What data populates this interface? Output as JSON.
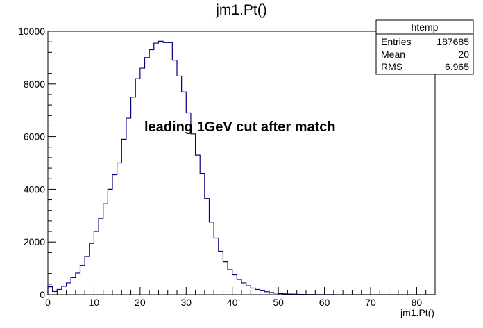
{
  "chart_data": {
    "type": "bar",
    "title": "jm1.Pt()",
    "xlabel": "jm1.Pt()",
    "ylabel": "",
    "annotation": "leading 1GeV cut after match",
    "xlim": [
      0,
      84
    ],
    "ylim": [
      0,
      10000
    ],
    "bin_width": 1,
    "xticks": [
      0,
      10,
      20,
      30,
      40,
      50,
      60,
      70,
      80
    ],
    "yticks": [
      0,
      2000,
      4000,
      6000,
      8000,
      10000
    ],
    "x_tick_labels": [
      "0",
      "10",
      "20",
      "30",
      "40",
      "50",
      "60",
      "70",
      "80"
    ],
    "y_tick_labels": [
      "0",
      "2000",
      "4000",
      "6000",
      "8000",
      "10000"
    ],
    "grid": false,
    "line_color": "#000080",
    "x": [
      0.5,
      1.5,
      2.5,
      3.5,
      4.5,
      5.5,
      6.5,
      7.5,
      8.5,
      9.5,
      10.5,
      11.5,
      12.5,
      13.5,
      14.5,
      15.5,
      16.5,
      17.5,
      18.5,
      19.5,
      20.5,
      21.5,
      22.5,
      23.5,
      24.5,
      25.5,
      26.5,
      27.5,
      28.5,
      29.5,
      30.5,
      31.5,
      32.5,
      33.5,
      34.5,
      35.5,
      36.5,
      37.5,
      38.5,
      39.5,
      40.5,
      41.5,
      42.5,
      43.5,
      44.5,
      45.5,
      46.5,
      47.5,
      48.5,
      49.5,
      50.5,
      51.5,
      52.5,
      53.5,
      54.5,
      55.5,
      56.5,
      57.5,
      58.5,
      59.5,
      60.5,
      61.5,
      62.5,
      63.5,
      64.5,
      65.5,
      66.5,
      67.5,
      68.5,
      69.5,
      70.5,
      71.5,
      72.5,
      73.5,
      74.5,
      75.5,
      76.5,
      77.5,
      78.5,
      79.5,
      80.5,
      81.5,
      82.5,
      83.5
    ],
    "values": [
      300,
      120,
      200,
      320,
      450,
      650,
      820,
      1100,
      1450,
      1950,
      2400,
      2900,
      3450,
      4000,
      4550,
      5000,
      5900,
      6700,
      7500,
      8200,
      8600,
      9000,
      9300,
      9550,
      9620,
      9570,
      9570,
      8900,
      8300,
      7700,
      6900,
      6100,
      5300,
      4600,
      3650,
      2750,
      2150,
      1650,
      1250,
      950,
      750,
      580,
      450,
      340,
      250,
      200,
      150,
      110,
      80,
      60,
      40,
      30,
      25,
      20,
      15,
      10,
      8,
      6,
      5,
      4,
      3,
      3,
      2,
      2,
      1,
      1,
      1,
      1,
      1,
      0,
      0,
      0,
      0,
      0,
      0,
      0,
      0,
      0,
      0,
      0,
      0,
      0,
      0,
      0
    ],
    "stats": {
      "title": "htemp",
      "rows": [
        {
          "label": "Entries",
          "value": "187685"
        },
        {
          "label": "Mean",
          "value": "20"
        },
        {
          "label": "RMS",
          "value": "6.965"
        }
      ]
    }
  }
}
